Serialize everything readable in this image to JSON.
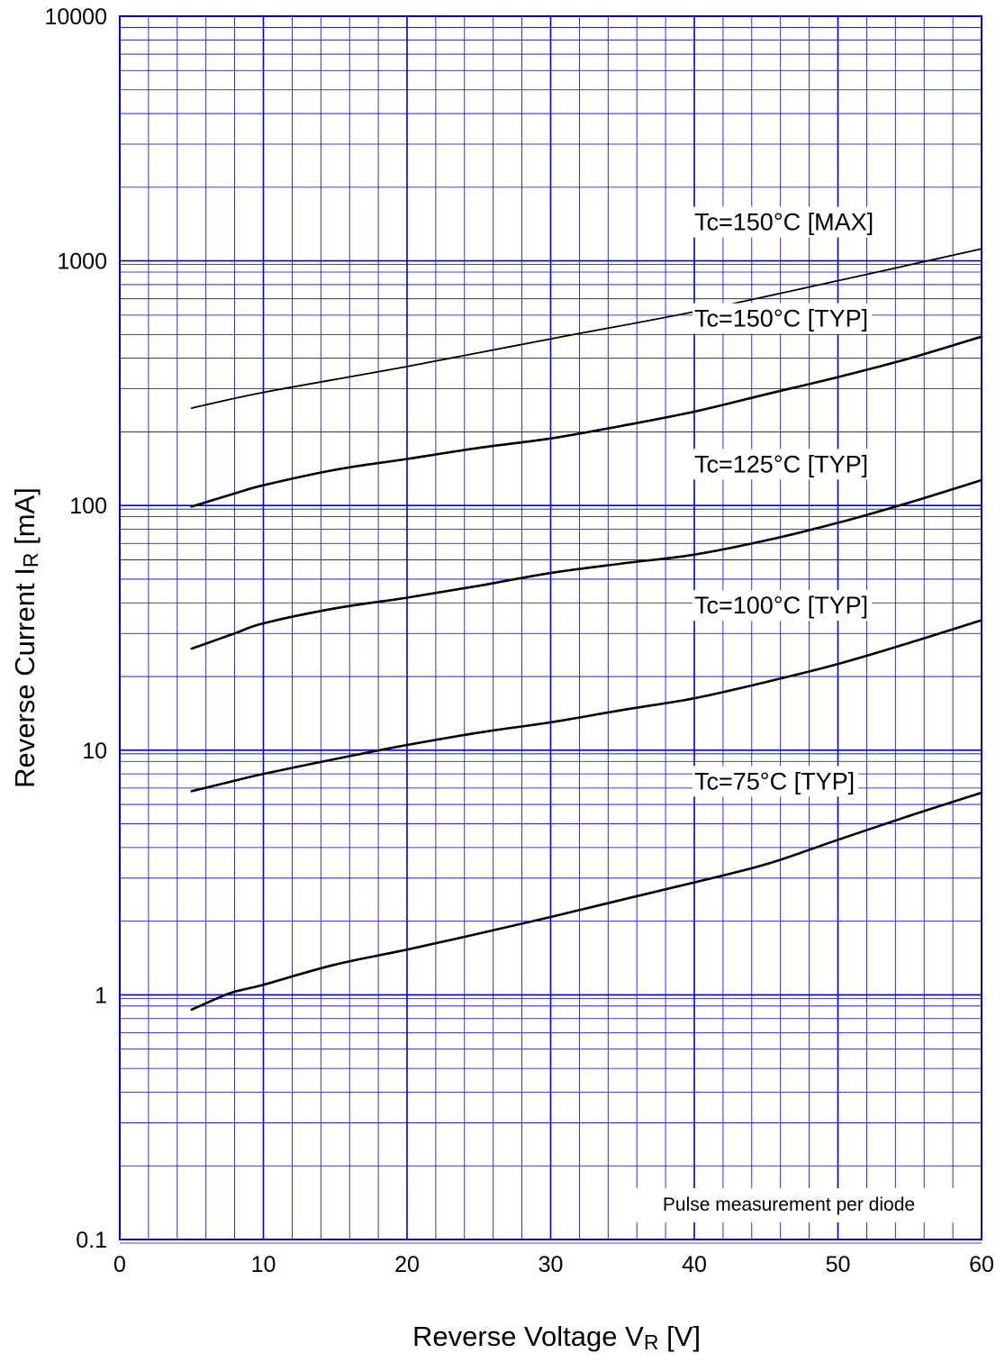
{
  "chart_data": {
    "type": "line",
    "title": "",
    "x_axis": {
      "label_main": "Reverse Voltage",
      "label_symbol": "V",
      "label_subscript": "R",
      "label_unit": "[V]",
      "min": 0,
      "max": 60,
      "major_ticks": [
        0,
        10,
        20,
        30,
        40,
        50,
        60
      ],
      "tick_labels": [
        "0",
        "10",
        "20",
        "30",
        "40",
        "50",
        "60"
      ],
      "minor_step": 2
    },
    "y_axis": {
      "label_main": "Reverse Current",
      "label_symbol": "I",
      "label_subscript": "R",
      "label_unit": "[mA]",
      "scale": "log",
      "min": 0.1,
      "max": 10000,
      "major_ticks": [
        0.1,
        1,
        10,
        100,
        1000,
        10000
      ],
      "tick_labels": [
        "0.1",
        "1",
        "10",
        "100",
        "1000",
        "10000"
      ]
    },
    "grid": true,
    "grid_color": "#0000c8",
    "line_color": "#000000",
    "note": "Pulse measurement per diode",
    "series": [
      {
        "name": "Tc=150°C [MAX]",
        "x": [
          5,
          10,
          20,
          30,
          40,
          50,
          60
        ],
        "y": [
          250,
          290,
          370,
          480,
          620,
          830,
          1120
        ]
      },
      {
        "name": "Tc=150°C [TYP]",
        "x": [
          5,
          8,
          10,
          15,
          20,
          25,
          30,
          35,
          40,
          45,
          50,
          55,
          60
        ],
        "y": [
          99,
          112,
          121,
          140,
          155,
          172,
          188,
          212,
          242,
          285,
          335,
          400,
          490
        ]
      },
      {
        "name": "Tc=125°C [TYP]",
        "x": [
          5,
          8,
          10,
          15,
          20,
          25,
          30,
          35,
          40,
          45,
          50,
          55,
          60
        ],
        "y": [
          26,
          30,
          33,
          38,
          42,
          47,
          53,
          58,
          63,
          72,
          85,
          103,
          127
        ]
      },
      {
        "name": "Tc=100°C [TYP]",
        "x": [
          5,
          8,
          10,
          15,
          20,
          25,
          30,
          35,
          40,
          45,
          50,
          55,
          60
        ],
        "y": [
          6.8,
          7.5,
          8.0,
          9.2,
          10.5,
          11.8,
          13.0,
          14.6,
          16.3,
          19.0,
          22.5,
          27.5,
          34.0
        ]
      },
      {
        "name": "Tc=75°C [TYP]",
        "x": [
          5,
          7,
          8,
          10,
          15,
          20,
          25,
          30,
          35,
          40,
          45,
          50,
          55,
          60
        ],
        "y": [
          0.87,
          0.98,
          1.03,
          1.1,
          1.33,
          1.53,
          1.78,
          2.08,
          2.45,
          2.88,
          3.42,
          4.3,
          5.4,
          6.7
        ]
      }
    ]
  }
}
